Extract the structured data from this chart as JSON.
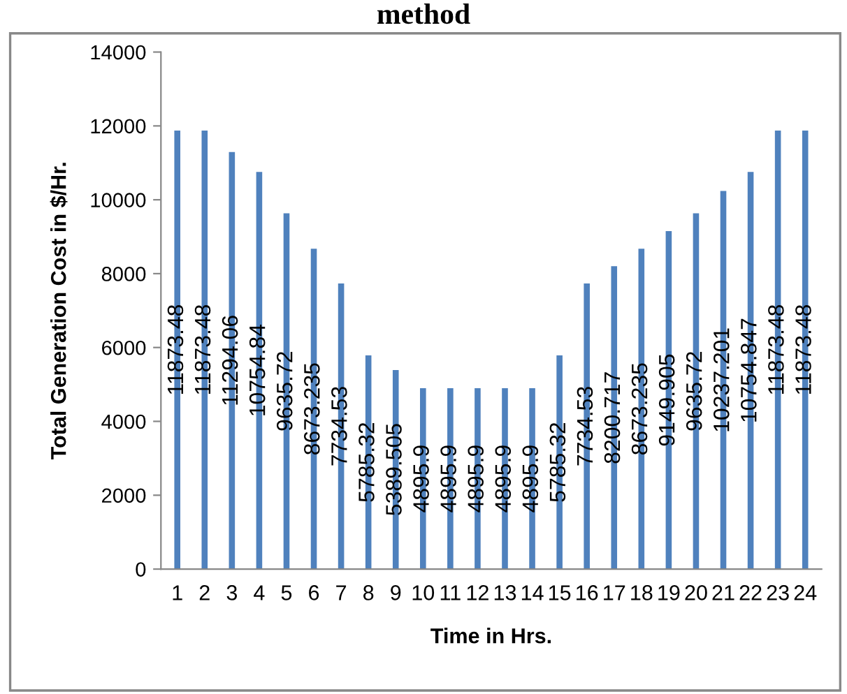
{
  "chart_data": {
    "type": "bar",
    "title": "method",
    "xlabel": "Time in Hrs.",
    "ylabel": "Total Generation Cost in $/Hr.",
    "categories": [
      "1",
      "2",
      "3",
      "4",
      "5",
      "6",
      "7",
      "8",
      "9",
      "10",
      "11",
      "12",
      "13",
      "14",
      "15",
      "16",
      "17",
      "18",
      "19",
      "20",
      "21",
      "22",
      "23",
      "24"
    ],
    "values": [
      11873.48,
      11873.48,
      11294.06,
      10754.84,
      9635.72,
      8673.235,
      7734.53,
      5785.32,
      5389.505,
      4895.9,
      4895.9,
      4895.9,
      4895.9,
      4895.9,
      5785.32,
      7734.53,
      8200.717,
      8673.235,
      9149.905,
      9635.72,
      10237.201,
      10754.847,
      11873.48,
      11873.48
    ],
    "value_labels": [
      "11873.48",
      "11873.48",
      "11294.06",
      "10754.84",
      "9635.72",
      "8673.235",
      "7734.53",
      "5785.32",
      "5389.505",
      "4895.9",
      "4895.9",
      "4895.9",
      "4895.9",
      "4895.9",
      "5785.32",
      "7734.53",
      "8200.717",
      "8673.235",
      "9149.905",
      "9635.72",
      "10237.201",
      "10754.847",
      "11873.48",
      "11873.48"
    ],
    "color": "#4f81bd",
    "ylim": [
      0,
      14000
    ],
    "yticks": [
      0,
      2000,
      4000,
      6000,
      8000,
      10000,
      12000,
      14000
    ],
    "grid": false
  }
}
